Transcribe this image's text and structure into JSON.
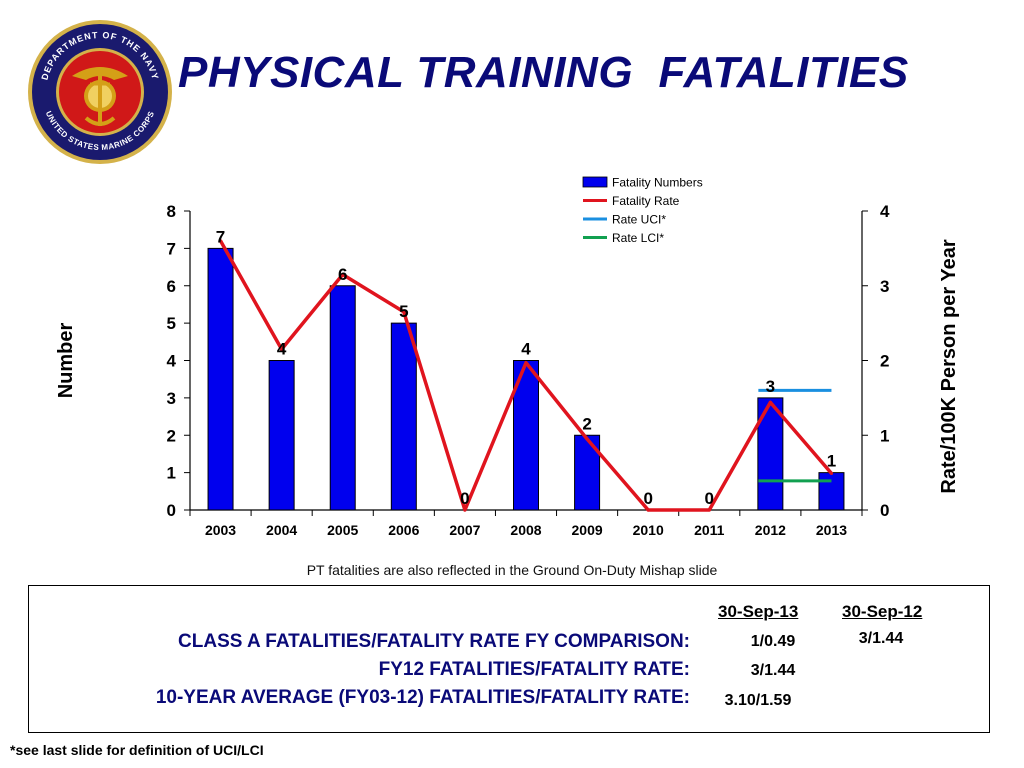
{
  "title": "PHYSICAL TRAINING  FATALITIES",
  "seal": {
    "ring_text_top": "DEPARTMENT OF THE NAVY",
    "ring_text_bottom": "UNITED STATES MARINE CORPS",
    "ring_color": "#1a1a6e",
    "inner_color": "#d01818",
    "emblem_color": "#d4a017"
  },
  "chart_data": {
    "type": "bar",
    "categories": [
      "2003",
      "2004",
      "2005",
      "2006",
      "2007",
      "2008",
      "2009",
      "2010",
      "2011",
      "2012",
      "2013"
    ],
    "series": [
      {
        "name": "Fatality Numbers",
        "kind": "bar",
        "axis": "left",
        "color": "#0000ee",
        "values": [
          7,
          4,
          6,
          5,
          0,
          4,
          2,
          0,
          0,
          3,
          1
        ]
      },
      {
        "name": "Fatality Rate",
        "kind": "line",
        "axis": "right",
        "color": "#e0141e",
        "values": [
          3.6,
          2.15,
          3.15,
          2.65,
          0,
          1.97,
          0.95,
          0,
          0,
          1.44,
          0.49
        ]
      },
      {
        "name": "Rate UCI*",
        "kind": "segment",
        "axis": "right",
        "color": "#1a8fe0",
        "x_range": [
          "2012",
          "2013"
        ],
        "value": 1.6
      },
      {
        "name": "Rate LCI*",
        "kind": "segment",
        "axis": "right",
        "color": "#11a050",
        "x_range": [
          "2012",
          "2013"
        ],
        "value": 0.39
      }
    ],
    "data_labels": [
      "7",
      "4",
      "6",
      "5",
      "0",
      "4",
      "2",
      "0",
      "0",
      "3",
      "1"
    ],
    "ylabel": "Number",
    "y2label": "Rate/100K Person per Year",
    "ylim": [
      0,
      8
    ],
    "y2lim": [
      0,
      4
    ],
    "yticks": [
      "0",
      "1",
      "2",
      "3",
      "4",
      "5",
      "6",
      "7",
      "8"
    ],
    "y2ticks": [
      "0",
      "1",
      "2",
      "3",
      "4"
    ],
    "legend_position": "top-right",
    "grid": false
  },
  "note": "PT fatalities are also reflected in the Ground On-Duty Mishap slide",
  "comparison": {
    "col1": "30-Sep-13",
    "col2": "30-Sep-12",
    "rows": [
      {
        "label": "CLASS A FATALITIES/FATALITY RATE FY COMPARISON:",
        "v1": "1/0.49",
        "v2": "3/1.44"
      },
      {
        "label": "FY12 FATALITIES/FATALITY RATE:",
        "v1": "3/1.44",
        "v2": ""
      },
      {
        "label": "10-YEAR AVERAGE (FY03-12) FATALITIES/FATALITY RATE:",
        "v1": "3.10/1.59",
        "v2": ""
      }
    ]
  },
  "footnote": "*see last slide for definition of UCI/LCI"
}
